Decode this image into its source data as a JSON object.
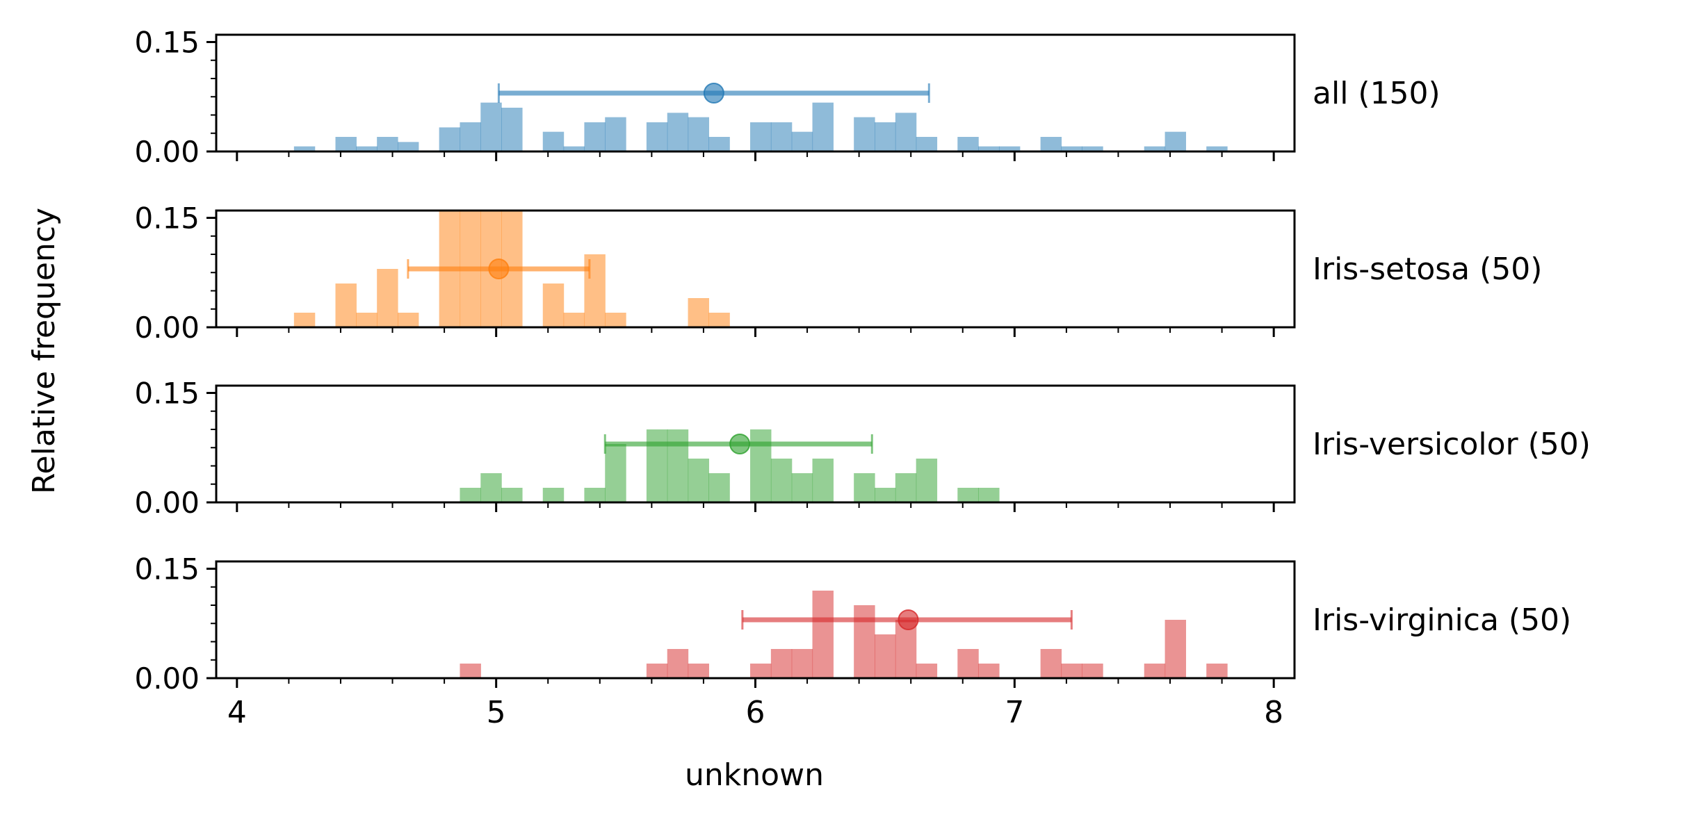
{
  "chart_data": {
    "type": "histogram",
    "ylabel": "Relative frequency",
    "xlabel": "unknown",
    "xlim": [
      3.92,
      8.08
    ],
    "ylim": [
      0,
      0.16
    ],
    "x_ticks": [
      {
        "value": 4,
        "label": "4"
      },
      {
        "value": 5,
        "label": "5"
      },
      {
        "value": 6,
        "label": "6"
      },
      {
        "value": 7,
        "label": "7"
      },
      {
        "value": 8,
        "label": "8"
      }
    ],
    "x_minor_ticks": [
      4.2,
      4.4,
      4.6,
      4.8,
      5.2,
      5.4,
      5.6,
      5.8,
      6.2,
      6.4,
      6.6,
      6.8,
      7.2,
      7.4,
      7.6,
      7.8
    ],
    "y_ticks": [
      {
        "value": 0.0,
        "label": "0.00"
      },
      {
        "value": 0.15,
        "label": "0.15"
      }
    ],
    "y_minor_ticks": [
      0.025,
      0.05,
      0.075,
      0.1,
      0.125
    ],
    "bin_edges": [
      4.22,
      4.3,
      4.38,
      4.46,
      4.54,
      4.62,
      4.7,
      4.78,
      4.86,
      4.94,
      5.02,
      5.1,
      5.18,
      5.26,
      5.34,
      5.42,
      5.5,
      5.58,
      5.66,
      5.74,
      5.82,
      5.9,
      5.98,
      6.06,
      6.14,
      6.22,
      6.3,
      6.38,
      6.46,
      6.54,
      6.62,
      6.7,
      6.78,
      6.86,
      6.94,
      7.02,
      7.1,
      7.18,
      7.26,
      7.34,
      7.42,
      7.5,
      7.58,
      7.66,
      7.74,
      7.82,
      7.9
    ],
    "panels": [
      {
        "label": "all (150)",
        "color": "#1f77b4",
        "mean": 5.84,
        "range": [
          5.01,
          6.67
        ],
        "values": [
          0.007,
          0,
          0.02,
          0.007,
          0.02,
          0.013,
          0,
          0.033,
          0.04,
          0.067,
          0.06,
          0,
          0.027,
          0.007,
          0.04,
          0.047,
          0,
          0.04,
          0.053,
          0.047,
          0.02,
          0,
          0.04,
          0.04,
          0.027,
          0.067,
          0,
          0.047,
          0.04,
          0.053,
          0.02,
          0,
          0.02,
          0.007,
          0.007,
          0,
          0.02,
          0.007,
          0.007,
          0,
          0,
          0.007,
          0.027,
          0,
          0.007,
          0
        ]
      },
      {
        "label": "Iris-setosa (50)",
        "color": "#ff7f0e",
        "mean": 5.01,
        "range": [
          4.66,
          5.36
        ],
        "values": [
          0.02,
          0,
          0.06,
          0.02,
          0.08,
          0.02,
          0,
          0.16,
          0.16,
          0.16,
          0.16,
          0,
          0.06,
          0.02,
          0.1,
          0.02,
          0,
          0,
          0,
          0.04,
          0.02,
          0,
          0,
          0,
          0,
          0,
          0,
          0,
          0,
          0,
          0,
          0,
          0,
          0,
          0,
          0,
          0,
          0,
          0,
          0,
          0,
          0,
          0,
          0,
          0,
          0
        ]
      },
      {
        "label": "Iris-versicolor (50)",
        "color": "#2ca02c",
        "mean": 5.94,
        "range": [
          5.42,
          6.45
        ],
        "values": [
          0,
          0,
          0,
          0,
          0,
          0,
          0,
          0,
          0.02,
          0.04,
          0.02,
          0,
          0.02,
          0,
          0.02,
          0.08,
          0,
          0.1,
          0.1,
          0.06,
          0.04,
          0,
          0.1,
          0.06,
          0.04,
          0.06,
          0,
          0.04,
          0.02,
          0.04,
          0.06,
          0,
          0.02,
          0.02,
          0,
          0,
          0,
          0,
          0,
          0,
          0,
          0,
          0,
          0,
          0,
          0
        ]
      },
      {
        "label": "Iris-virginica (50)",
        "color": "#d62728",
        "mean": 6.59,
        "range": [
          5.95,
          7.22
        ],
        "values": [
          0,
          0,
          0,
          0,
          0,
          0,
          0,
          0,
          0.02,
          0,
          0,
          0,
          0,
          0,
          0,
          0,
          0,
          0.02,
          0.04,
          0.02,
          0,
          0,
          0.02,
          0.04,
          0.04,
          0.12,
          0,
          0.1,
          0.06,
          0.08,
          0.02,
          0,
          0.04,
          0.02,
          0,
          0,
          0.04,
          0.02,
          0.02,
          0,
          0,
          0.02,
          0.08,
          0,
          0.02,
          0
        ]
      }
    ]
  }
}
